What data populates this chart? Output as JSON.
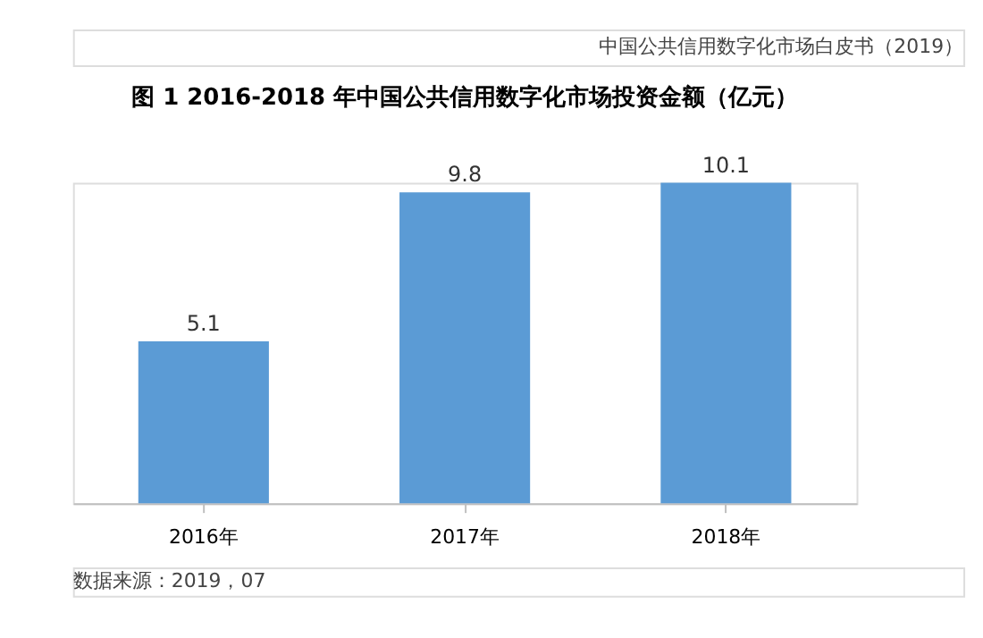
{
  "chart_data": {
    "type": "bar",
    "title": "图 1   2016-2018 年中国公共信用数字化市场投资金额（亿元）",
    "categories": [
      "2016年",
      "2017年",
      "2018年"
    ],
    "values": [
      5.1,
      9.8,
      10.1
    ],
    "color": "#5b9bd5",
    "data_labels": true,
    "grid": false,
    "tick_labels": "x",
    "annotations": [
      "中国公共信用数字化市场白皮书（2019）",
      "数据来源：2019，07"
    ]
  }
}
